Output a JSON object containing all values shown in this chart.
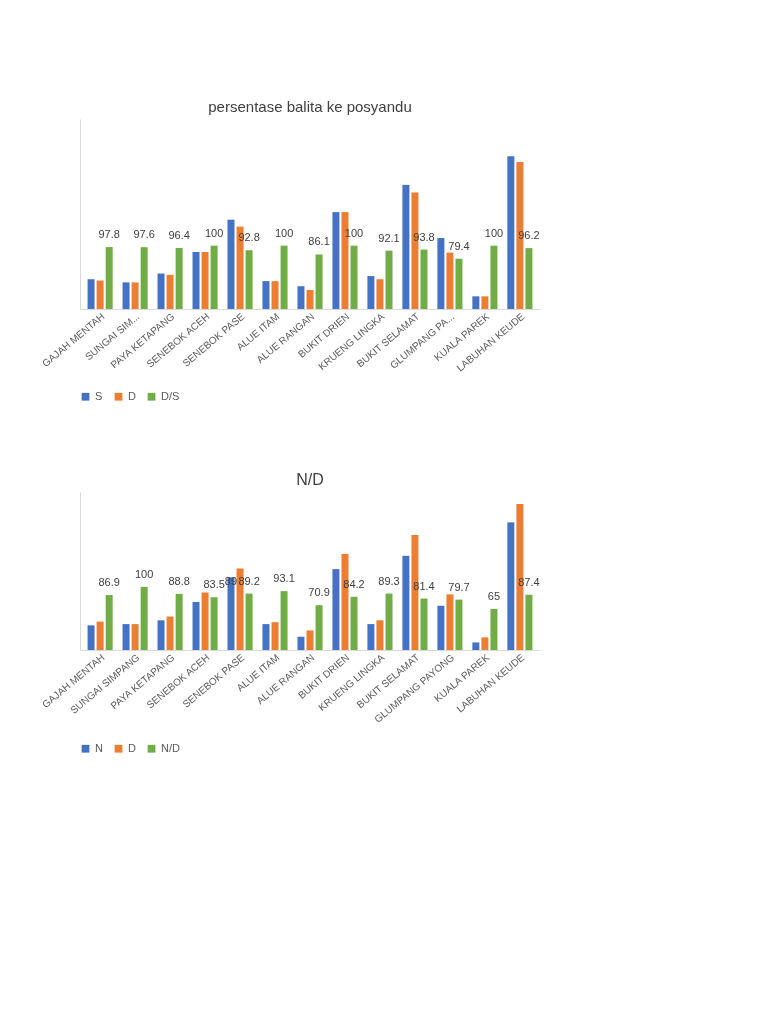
{
  "chart_data": [
    {
      "type": "bar",
      "title": "persentase balita ke posyandu",
      "categories": [
        "GAJAH MENTAH",
        "SUNGAI SIM...",
        "PAYA KETAPANG",
        "SENEBOK ACEH",
        "SENEBOK PASE",
        "ALUE ITAM",
        "ALUE RANGAN",
        "BUKIT DRIEN",
        "KRUENG LINGKA",
        "BUKIT SELAMAT",
        "GLUMPANG PA...",
        "KUALA PAREK",
        "LABUHAN KEUDE"
      ],
      "series": [
        {
          "name": "S",
          "color": "#4472c4",
          "values": [
            47,
            42,
            56,
            90,
            141,
            44,
            36,
            153,
            52,
            196,
            112,
            20,
            241
          ]
        },
        {
          "name": "D",
          "color": "#ed7d31",
          "values": [
            45,
            42,
            54,
            90,
            130,
            44,
            30,
            153,
            47,
            184,
            89,
            20,
            232
          ]
        },
        {
          "name": "D/S",
          "color": "#70ad47",
          "values": [
            97.8,
            97.6,
            96.4,
            100,
            92.8,
            100,
            86.1,
            100,
            92.1,
            93.8,
            79.4,
            100,
            96.2
          ],
          "value_labels": [
            "97.8",
            "97.6",
            "96.4",
            "100",
            "92.8",
            "100",
            "86.1",
            "100",
            "92.1",
            "93.8",
            "79.4",
            "100",
            "96.2"
          ]
        }
      ],
      "ylim": [
        0,
        300
      ],
      "tick_labels": "x",
      "legend": "bottom"
    },
    {
      "type": "bar",
      "title": "N/D",
      "categories": [
        "GAJAH MENTAH",
        "SUNGAI SIMPANG",
        "PAYA KETAPANG",
        "SENEBOK ACEH",
        "SENEBOK PASE",
        "ALUE ITAM",
        "ALUE RANGAN",
        "BUKIT DRIEN",
        "KRUENG LINGKA",
        "BUKIT SELAMAT",
        "GLUMPANG PAYONG",
        "KUALA PAREK",
        "LABUHAN KEUDE"
      ],
      "series": [
        {
          "name": "N",
          "color": "#4472c4",
          "values": [
            39,
            41,
            47,
            76,
            115,
            41,
            21,
            128,
            41,
            149,
            70,
            12,
            202
          ]
        },
        {
          "name": "D",
          "color": "#ed7d31",
          "values": [
            45,
            41,
            53,
            91,
            129,
            44,
            31,
            152,
            47,
            182,
            88,
            20,
            231
          ]
        },
        {
          "name": "N/D",
          "color": "#70ad47",
          "values": [
            86.9,
            100,
            88.8,
            83.5,
            89.2,
            93.1,
            70.9,
            84.2,
            89.3,
            81.4,
            79.7,
            65,
            87.4
          ],
          "value_labels": [
            "86.9",
            "100",
            "88.8",
            "83.5",
            "89.2",
            "93.1",
            "70.9",
            "84.2",
            "89.3",
            "81.4",
            "79.7",
            "65",
            "87.4"
          ]
        }
      ],
      "annotations": [
        {
          "text": "89",
          "x": "SENEBOK PASE",
          "y": 89.2
        }
      ],
      "ylim": [
        0,
        250
      ],
      "tick_labels": "x",
      "legend": "bottom"
    }
  ]
}
